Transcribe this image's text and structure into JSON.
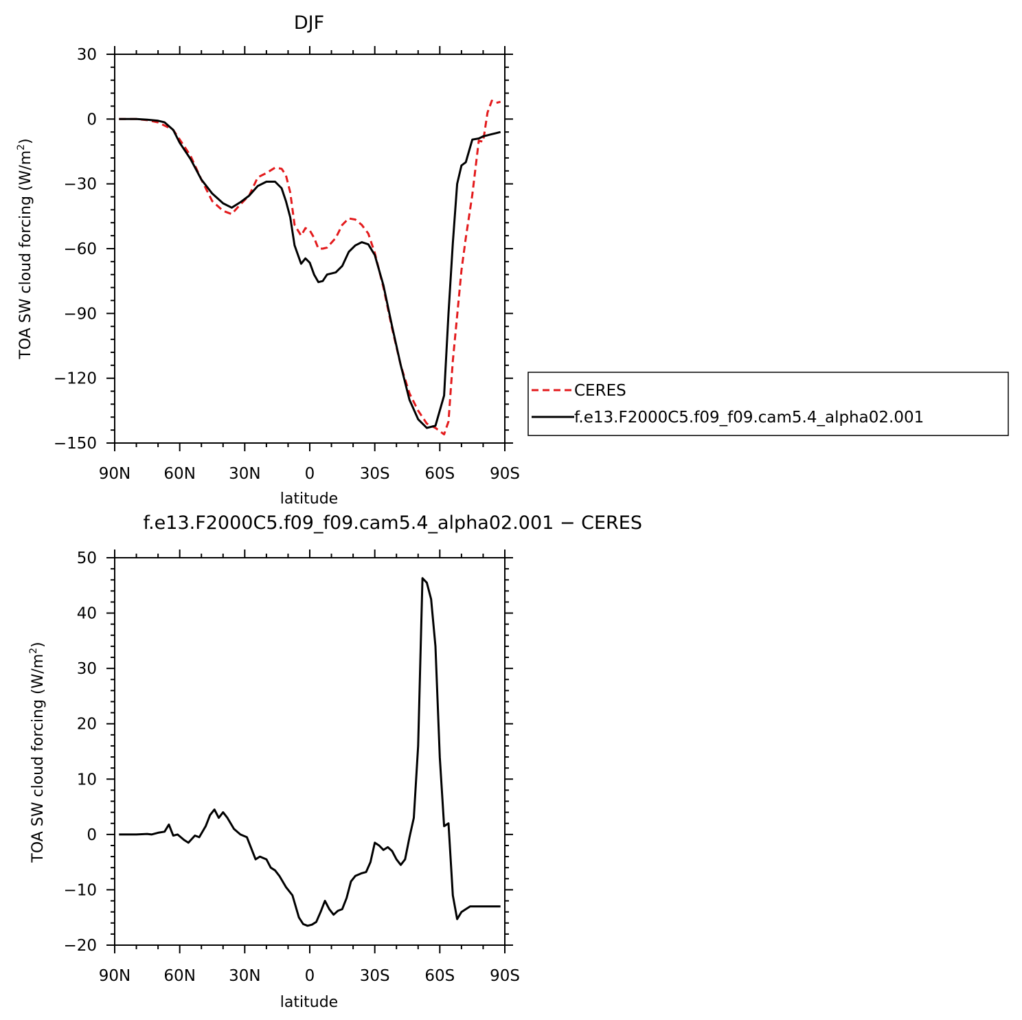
{
  "chart_data": [
    {
      "type": "line",
      "title": "DJF",
      "xlabel": "latitude",
      "ylabel": "TOA SW cloud forcing (W/m²)",
      "ylabel_main": "TOA SW cloud forcing (W/m",
      "ylabel_sup": "2",
      "ylabel_close": ")",
      "xlim": [
        -90,
        90
      ],
      "ylim": [
        -150,
        30
      ],
      "xticks": [
        -90,
        -60,
        -30,
        0,
        30,
        60,
        90
      ],
      "xtick_labels": [
        "90N",
        "60N",
        "30N",
        "0",
        "30S",
        "60S",
        "90S"
      ],
      "yticks": [
        30,
        0,
        -30,
        -60,
        -90,
        -120,
        -150
      ],
      "ytick_labels": [
        "30",
        "0",
        "−30",
        "−60",
        "−90",
        "−120",
        "−150"
      ],
      "legend_position": "right",
      "series": [
        {
          "name": "CERES",
          "color": "#e31a1c",
          "dash": "dashed",
          "x": [
            -88,
            -85,
            -80,
            -75,
            -70,
            -67,
            -63,
            -60,
            -55,
            -50,
            -45,
            -40,
            -36,
            -32,
            -28,
            -24,
            -20,
            -16,
            -13,
            -11,
            -9,
            -7,
            -4,
            -2,
            0,
            2,
            4,
            6,
            8,
            12,
            15,
            18,
            21,
            24,
            27,
            30,
            34,
            38,
            42,
            46,
            50,
            54,
            58,
            62,
            64,
            66,
            68,
            70,
            72,
            75,
            78,
            80,
            82,
            84,
            86,
            88
          ],
          "values": [
            0,
            0,
            0,
            -0.5,
            -1.5,
            -3,
            -5,
            -9.5,
            -17,
            -28,
            -38,
            -42.5,
            -44,
            -39.5,
            -35.5,
            -27,
            -25,
            -22.5,
            -23,
            -26,
            -34,
            -49,
            -54,
            -50.5,
            -51.5,
            -55,
            -60,
            -60,
            -59.5,
            -55,
            -49,
            -46,
            -46.5,
            -49,
            -53,
            -62,
            -78,
            -97,
            -114,
            -127,
            -135,
            -141,
            -143,
            -146,
            -140,
            -112,
            -91,
            -70,
            -55,
            -35,
            -10,
            -10.5,
            3,
            8.5,
            7.5,
            8
          ]
        },
        {
          "name": "f.e13.F2000C5.f09_f09.cam5.4_alpha02.001",
          "color": "#000000",
          "dash": "solid",
          "x": [
            -88,
            -85,
            -80,
            -75,
            -70,
            -67,
            -63,
            -60,
            -55,
            -50,
            -45,
            -40,
            -36,
            -32,
            -28,
            -24,
            -20,
            -16,
            -13,
            -11,
            -9,
            -7,
            -4,
            -2,
            0,
            2,
            4,
            6,
            8,
            12,
            15,
            18,
            21,
            24,
            27,
            30,
            34,
            38,
            42,
            46,
            50,
            54,
            58,
            62,
            64,
            66,
            68,
            70,
            72,
            75,
            78,
            80,
            82,
            84,
            86,
            88
          ],
          "values": [
            0,
            0,
            0,
            -0.3,
            -0.8,
            -1.5,
            -5,
            -11,
            -18.5,
            -28,
            -34.5,
            -39,
            -41,
            -38.5,
            -35.5,
            -31,
            -29,
            -29,
            -32,
            -38,
            -45.5,
            -58.5,
            -67,
            -64.5,
            -66.5,
            -72,
            -75.5,
            -75,
            -72,
            -71,
            -68,
            -61.5,
            -58.5,
            -57,
            -58,
            -63,
            -77,
            -96,
            -114,
            -130,
            -139,
            -143,
            -142,
            -128,
            -90,
            -57.5,
            -30,
            -21.5,
            -20,
            -9.5,
            -9,
            -8,
            -7.5,
            -7,
            -6.5,
            -6
          ]
        }
      ]
    },
    {
      "type": "line",
      "title": "f.e13.F2000C5.f09_f09.cam5.4_alpha02.001 − CERES",
      "xlabel": "latitude",
      "ylabel": "TOA SW cloud forcing (W/m²)",
      "ylabel_main": "TOA SW cloud forcing (W/m",
      "ylabel_sup": "2",
      "ylabel_close": ")",
      "xlim": [
        -90,
        90
      ],
      "ylim": [
        -20,
        50
      ],
      "xticks": [
        -90,
        -60,
        -30,
        0,
        30,
        60,
        90
      ],
      "xtick_labels": [
        "90N",
        "60N",
        "30N",
        "0",
        "30S",
        "60S",
        "90S"
      ],
      "yticks": [
        50,
        40,
        30,
        20,
        10,
        0,
        -10,
        -20
      ],
      "ytick_labels": [
        "50",
        "40",
        "30",
        "20",
        "10",
        "0",
        "−10",
        "−20"
      ],
      "series": [
        {
          "color": "#000000",
          "dash": "solid",
          "x": [
            -88,
            -85,
            -80,
            -75,
            -73,
            -70,
            -67,
            -65,
            -63,
            -61,
            -58,
            -56,
            -53,
            -51,
            -48,
            -46,
            -44,
            -42,
            -40,
            -38,
            -35,
            -32,
            -29,
            -25,
            -23,
            -20,
            -18,
            -16,
            -14,
            -11,
            -8,
            -5,
            -3,
            -1,
            1,
            3,
            5,
            7,
            9,
            11,
            13,
            15,
            17,
            19,
            21,
            24,
            26,
            28,
            30,
            32,
            34,
            36,
            38,
            40,
            42,
            44,
            46,
            48,
            50,
            52,
            54,
            56,
            58,
            60,
            62,
            64,
            66,
            68,
            70,
            72,
            74,
            76,
            78,
            80,
            82,
            84,
            86,
            88
          ],
          "values": [
            0,
            0,
            0,
            0.1,
            0,
            0.3,
            0.5,
            1.8,
            -0.2,
            0,
            -1,
            -1.5,
            -0.2,
            -0.5,
            1.5,
            3.5,
            4.5,
            3,
            4,
            3,
            1,
            0,
            -0.5,
            -4.5,
            -4,
            -4.5,
            -6,
            -6.5,
            -7.5,
            -9.5,
            -11,
            -15,
            -16.2,
            -16.5,
            -16.3,
            -15.8,
            -14,
            -12,
            -13.5,
            -14.5,
            -13.8,
            -13.5,
            -11.5,
            -8.5,
            -7.5,
            -7,
            -6.8,
            -5,
            -1.5,
            -2,
            -2.8,
            -2.3,
            -3,
            -4.5,
            -5.5,
            -4.5,
            -0.5,
            3,
            16,
            46.3,
            45.5,
            42.5,
            34,
            14,
            1.5,
            2,
            -11,
            -15.3,
            -14,
            -13.5,
            -13,
            -13,
            -13,
            -13,
            -13,
            -13,
            -13,
            -13
          ]
        }
      ]
    }
  ]
}
